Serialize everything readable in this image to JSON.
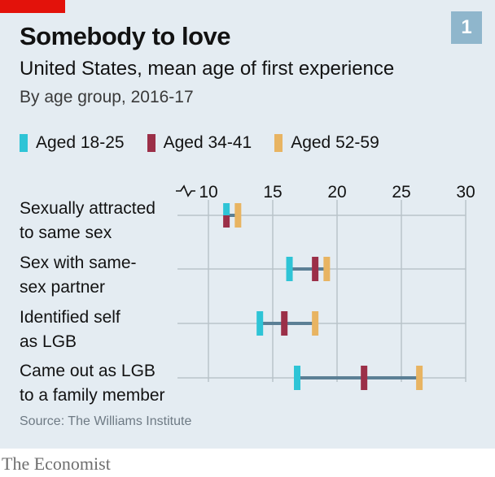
{
  "header": {
    "title": "Somebody to love",
    "subtitle": "United States, mean age of first experience",
    "subsubtitle": "By age group, 2016-17",
    "badge": "1"
  },
  "legend": [
    {
      "label": "Aged 18-25",
      "color": "#2ec4d6"
    },
    {
      "label": "Aged 34-41",
      "color": "#9b2f48"
    },
    {
      "label": "Aged 52-59",
      "color": "#e8b462"
    }
  ],
  "source": "Source: The Williams Institute",
  "brand": "The Economist",
  "chart_data": {
    "type": "dot-range",
    "x_ticks": [
      10,
      15,
      20,
      25,
      30
    ],
    "xlim": [
      10,
      30
    ],
    "axis_break_before_first_tick": true,
    "grid": "vertical",
    "range_line_color": "#5b7f95",
    "series": [
      {
        "name": "Aged 18-25",
        "color": "#2ec4d6"
      },
      {
        "name": "Aged 34-41",
        "color": "#9b2f48"
      },
      {
        "name": "Aged 52-59",
        "color": "#e8b462"
      }
    ],
    "categories": [
      {
        "label_lines": [
          "Sexually attracted",
          "to same sex"
        ],
        "values": [
          11.4,
          11.4,
          12.3
        ]
      },
      {
        "label_lines": [
          "Sex with same-",
          "sex partner"
        ],
        "values": [
          16.3,
          18.3,
          19.2
        ]
      },
      {
        "label_lines": [
          "Identified self",
          "as LGB"
        ],
        "values": [
          14.0,
          15.9,
          18.3
        ]
      },
      {
        "label_lines": [
          "Came out as LGB",
          "to a family member"
        ],
        "values": [
          16.9,
          22.1,
          26.4
        ]
      }
    ]
  }
}
